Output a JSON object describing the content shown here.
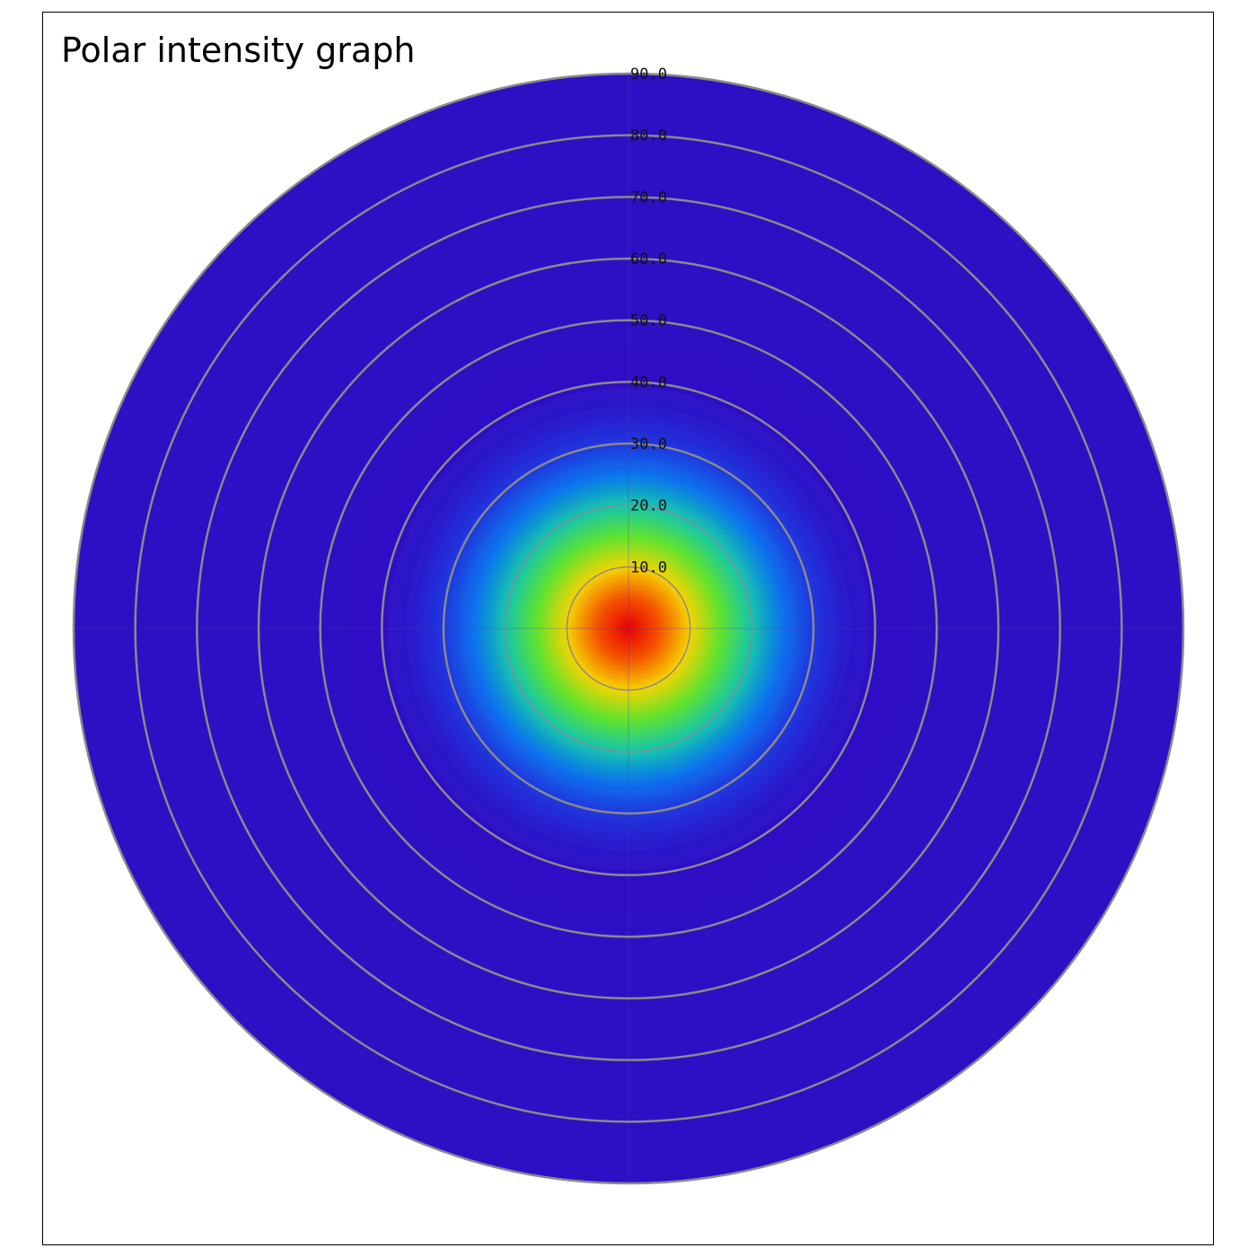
{
  "chart_data": {
    "type": "heatmap",
    "subtype": "polar",
    "title": "Polar intensity graph",
    "radial_axis": {
      "min": 0,
      "max": 90,
      "ticks": [
        10,
        20,
        30,
        40,
        50,
        60,
        70,
        80,
        90
      ],
      "tick_labels": [
        "10.0",
        "20.0",
        "30.0",
        "40.0",
        "50.0",
        "60.0",
        "70.0",
        "80.0",
        "90.0"
      ]
    },
    "grid": true,
    "legend": "none",
    "colormap": [
      {
        "stop": 0.0,
        "color": "#2f0fc4"
      },
      {
        "stop": 0.25,
        "color": "#1452f0"
      },
      {
        "stop": 0.4,
        "color": "#00b8e6"
      },
      {
        "stop": 0.55,
        "color": "#3be03b"
      },
      {
        "stop": 0.7,
        "color": "#f0f000"
      },
      {
        "stop": 0.85,
        "color": "#ff9a00"
      },
      {
        "stop": 1.0,
        "color": "#e80000"
      }
    ],
    "intensity_profile": {
      "radius": [
        0,
        5,
        10,
        15,
        20,
        25,
        30,
        35,
        40,
        90
      ],
      "value": [
        1.0,
        0.92,
        0.75,
        0.58,
        0.45,
        0.3,
        0.15,
        0.05,
        0.0,
        0.0
      ]
    },
    "grid_color": "#8a8a8a"
  }
}
